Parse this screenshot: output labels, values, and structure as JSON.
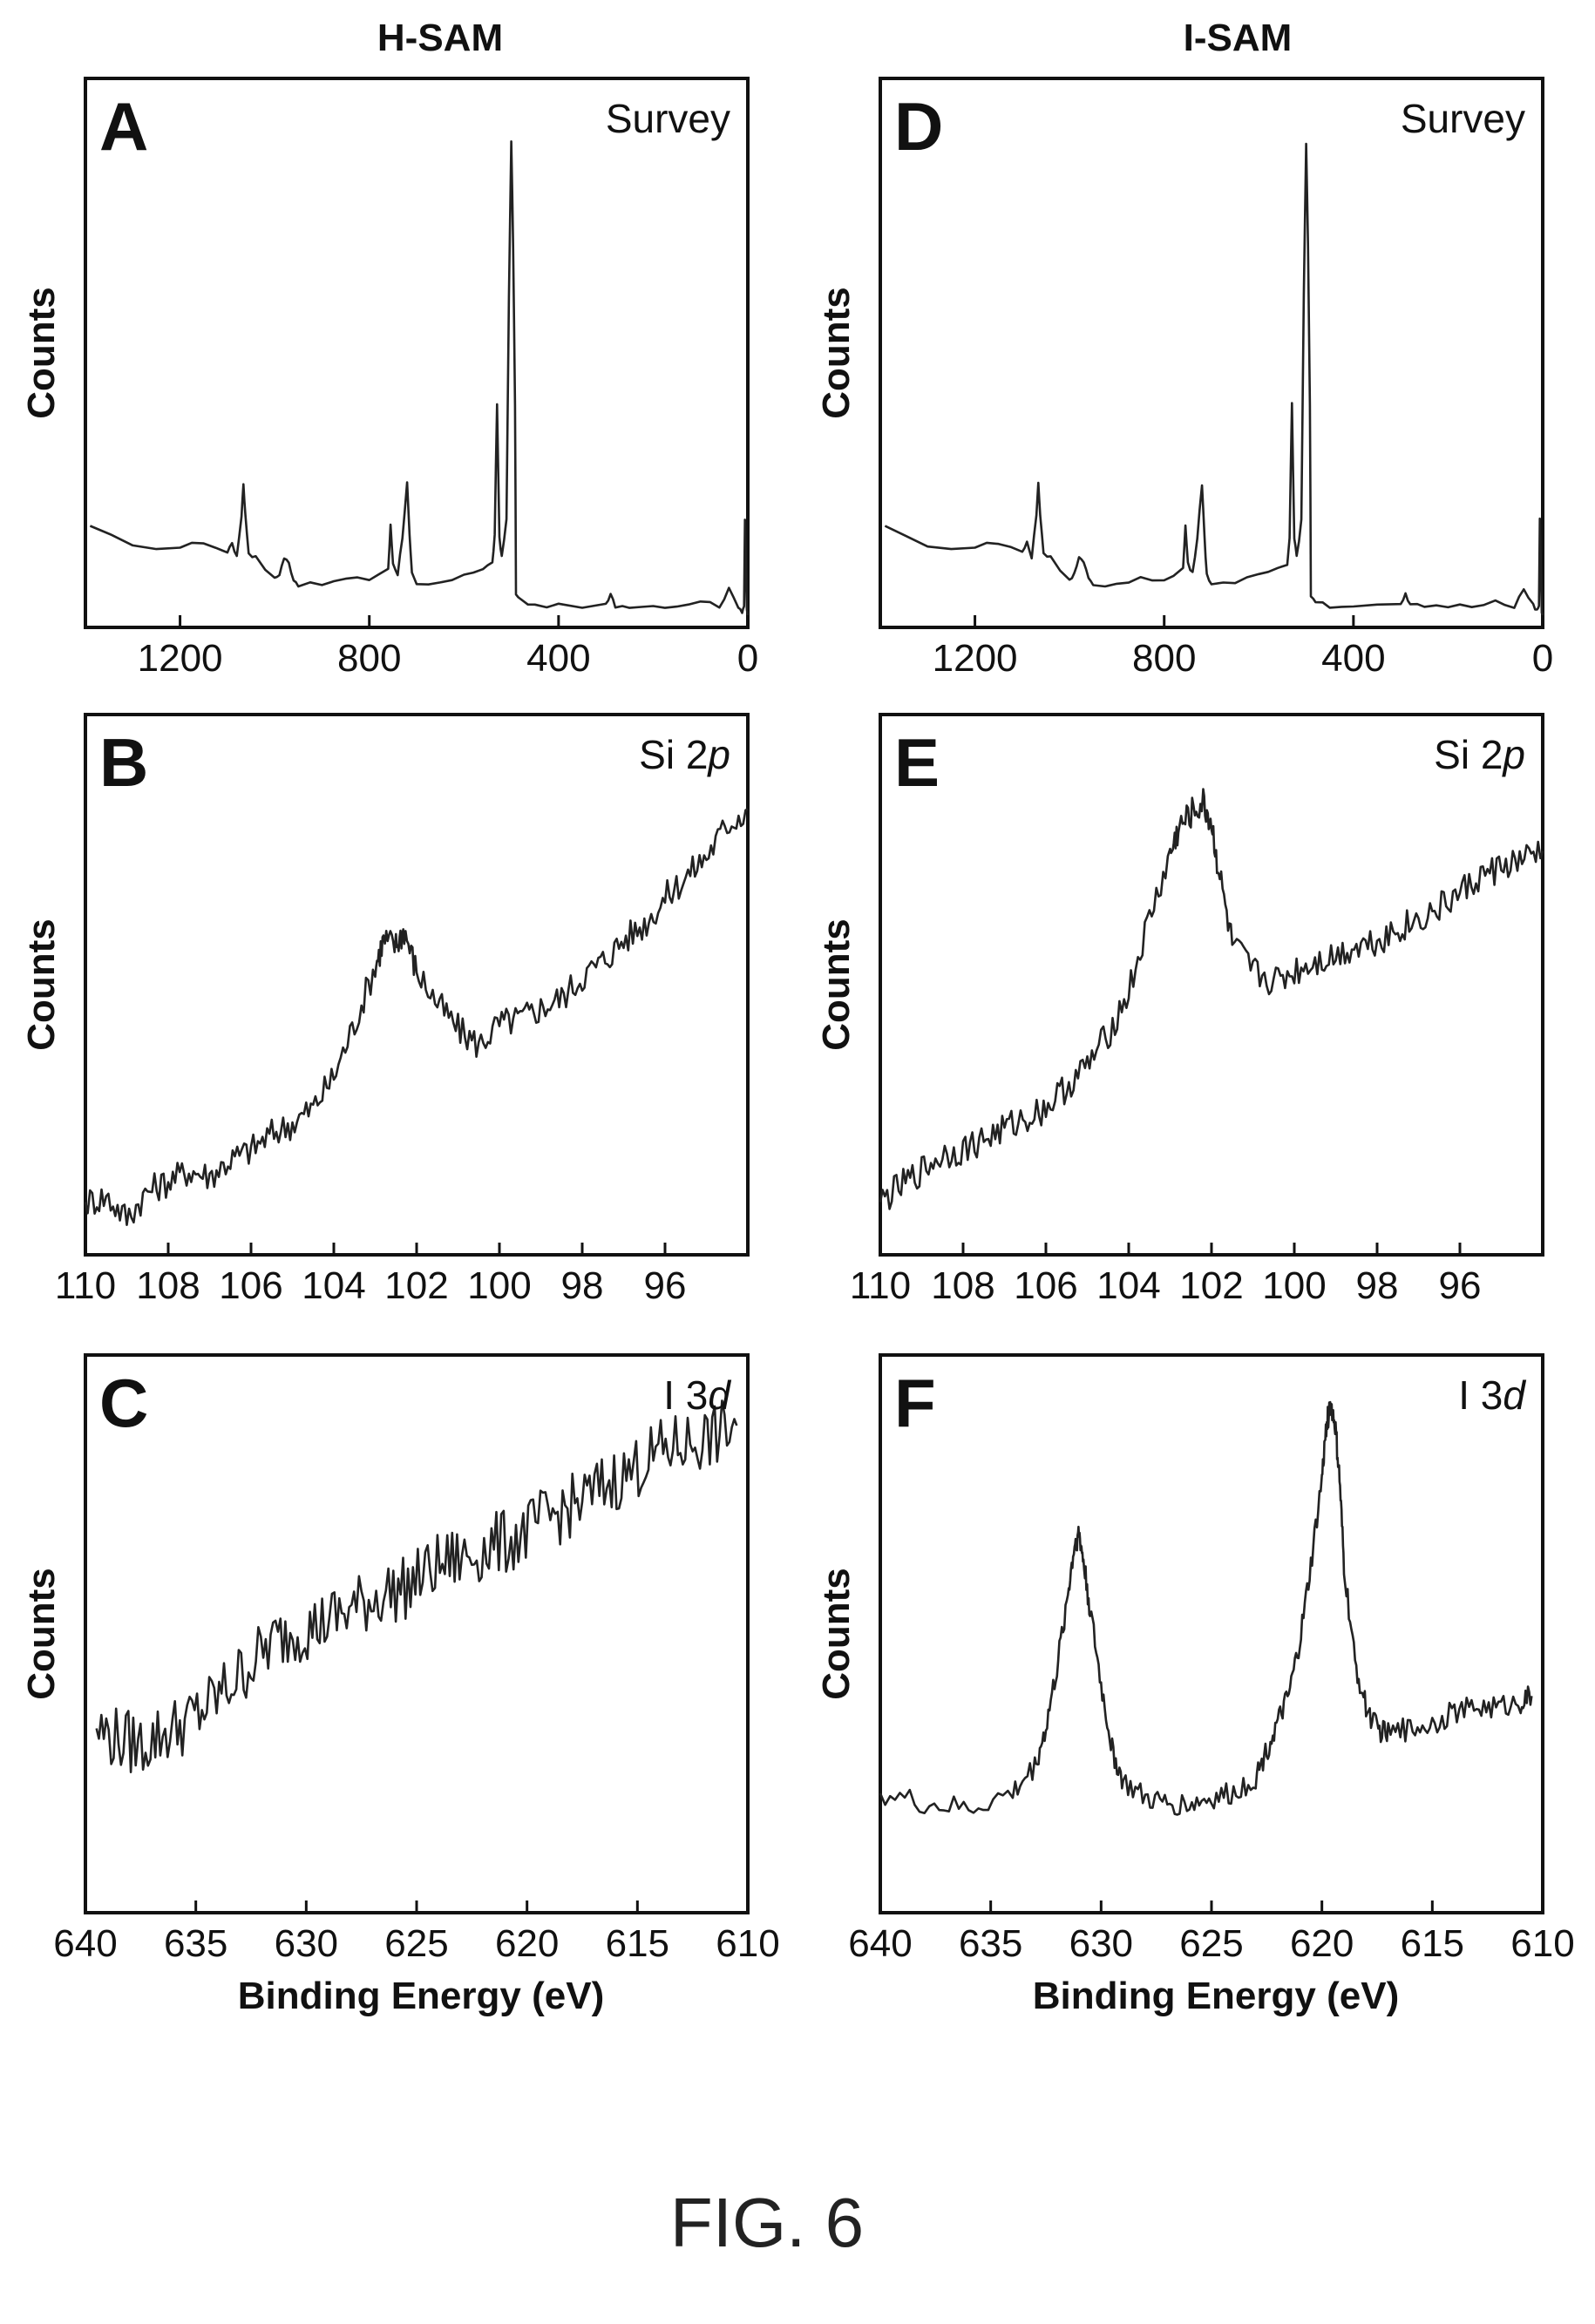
{
  "figure_caption": "FIG. 6",
  "column_titles": [
    "H-SAM",
    "I-SAM"
  ],
  "colors": {
    "trace": "#222222",
    "frame": "#111111"
  },
  "chart_data": [
    {
      "id": "A",
      "type": "line",
      "letter": "A",
      "label": "Survey",
      "label_italic": "",
      "ylabel": "Counts",
      "xlabel": "",
      "xlim": [
        1400,
        0
      ],
      "ylim": [
        0,
        100
      ],
      "xticks": [
        1200,
        800,
        400,
        0
      ],
      "tick_labels": [
        "1200",
        "800",
        "400",
        "0"
      ],
      "series": [
        {
          "x": [
            1390,
            1300,
            1200,
            1150,
            1100,
            1090,
            1080,
            1070,
            1066,
            1062,
            1055,
            1040,
            1000,
            990,
            980,
            970,
            960,
            950,
            900,
            850,
            800,
            760,
            755,
            750,
            740,
            730,
            720,
            715,
            710,
            700,
            650,
            600,
            560,
            540,
            535,
            530,
            525,
            520,
            510,
            505,
            500,
            496,
            492,
            490,
            480,
            450,
            400,
            300,
            290,
            280,
            250,
            200,
            150,
            100,
            60,
            40,
            20,
            12,
            8,
            6,
            4,
            2,
            0
          ],
          "y": [
            17,
            13,
            13,
            14,
            12,
            14,
            11,
            19,
            25,
            19,
            12,
            11,
            7,
            8,
            11,
            10,
            7,
            6,
            6,
            7,
            7,
            9,
            17,
            10,
            8,
            15,
            25,
            15,
            8,
            6,
            6,
            8,
            9,
            10,
            15,
            40,
            15,
            11,
            18,
            60,
            89,
            70,
            40,
            4,
            3,
            2,
            2,
            2,
            4,
            2,
            2,
            2,
            2,
            3,
            2,
            5,
            2,
            1,
            2,
            18,
            10,
            1,
            0
          ]
        }
      ]
    },
    {
      "id": "B",
      "type": "line",
      "letter": "B",
      "label": "Si 2",
      "label_italic": "p",
      "ylabel": "Counts",
      "xlabel": "",
      "xlim": [
        110,
        94
      ],
      "ylim": [
        0,
        100
      ],
      "xticks": [
        110,
        108,
        106,
        104,
        102,
        100,
        98,
        96
      ],
      "tick_labels": [
        "110",
        "108",
        "106",
        "104",
        "102",
        "100",
        "98",
        "96"
      ],
      "series": [
        {
          "x": [
            110,
            109.5,
            109,
            108.5,
            108,
            107.5,
            107,
            106.5,
            106,
            105.5,
            105,
            104.5,
            104,
            103.5,
            103,
            102.8,
            102.5,
            102.3,
            102,
            101.5,
            101,
            100.5,
            100,
            99.5,
            99,
            98.5,
            98,
            97.5,
            97,
            96.5,
            96,
            95.5,
            95,
            94.5,
            94
          ],
          "y": [
            8,
            9,
            5,
            10,
            12,
            14,
            13,
            16,
            18,
            21,
            23,
            26,
            32,
            42,
            53,
            58,
            57,
            60,
            52,
            46,
            41,
            38,
            42,
            43,
            45,
            47,
            51,
            54,
            58,
            61,
            66,
            70,
            74,
            80,
            83
          ]
        }
      ]
    },
    {
      "id": "C",
      "type": "line",
      "letter": "C",
      "label": "I 3",
      "label_italic": "d",
      "ylabel": "Counts",
      "xlabel": "Binding Energy (eV)",
      "xlim": [
        640,
        610
      ],
      "ylim": [
        0,
        100
      ],
      "xticks": [
        640,
        635,
        630,
        625,
        620,
        615,
        610
      ],
      "tick_labels": [
        "640",
        "635",
        "630",
        "625",
        "620",
        "615",
        "610"
      ],
      "series": [
        {
          "x": [
            639.5,
            638.5,
            637.5,
            636.5,
            635.5,
            634.5,
            633.5,
            632.5,
            631.5,
            630.5,
            629.5,
            628.5,
            627.5,
            626.5,
            625.5,
            624.5,
            623.5,
            622.5,
            621.5,
            620.5,
            619.5,
            618.5,
            617.5,
            616.5,
            615.5,
            614.5,
            613.5,
            612.5,
            611.5,
            610.5
          ],
          "y": [
            32,
            30,
            29,
            31,
            33,
            36,
            40,
            44,
            48,
            50,
            51,
            53,
            55,
            57,
            58,
            61,
            63,
            64,
            66,
            67,
            70,
            72,
            74,
            77,
            79,
            82,
            84,
            85,
            86,
            88
          ]
        }
      ]
    },
    {
      "id": "D",
      "type": "line",
      "letter": "D",
      "label": "Survey",
      "label_italic": "",
      "ylabel": "Counts",
      "xlabel": "",
      "xlim": [
        1400,
        0
      ],
      "ylim": [
        0,
        100
      ],
      "xticks": [
        1200,
        800,
        400,
        0
      ],
      "tick_labels": [
        "1200",
        "800",
        "400",
        "0"
      ],
      "series": [
        {
          "x": [
            1390,
            1300,
            1200,
            1150,
            1100,
            1090,
            1080,
            1070,
            1066,
            1062,
            1055,
            1040,
            1000,
            990,
            980,
            970,
            960,
            950,
            900,
            850,
            800,
            760,
            755,
            750,
            740,
            730,
            720,
            715,
            710,
            700,
            650,
            600,
            560,
            540,
            535,
            530,
            525,
            520,
            510,
            505,
            500,
            496,
            492,
            490,
            480,
            450,
            400,
            300,
            290,
            280,
            250,
            200,
            150,
            100,
            60,
            40,
            20,
            12,
            8,
            6,
            4,
            2,
            0
          ],
          "y": [
            17,
            13,
            13,
            14,
            12,
            14,
            11,
            19,
            25,
            19,
            12,
            11,
            7,
            8,
            11,
            10,
            7,
            6,
            6,
            7,
            7,
            9,
            17,
            10,
            8,
            15,
            25,
            15,
            8,
            6,
            6,
            8,
            9,
            10,
            15,
            40,
            15,
            11,
            18,
            60,
            89,
            70,
            40,
            4,
            3,
            2,
            2,
            2,
            4,
            2,
            2,
            2,
            2,
            3,
            2,
            5,
            2,
            1,
            2,
            18,
            10,
            1,
            0
          ]
        }
      ]
    },
    {
      "id": "E",
      "type": "line",
      "letter": "E",
      "label": "Si 2",
      "label_italic": "p",
      "ylabel": "Counts",
      "xlabel": "",
      "xlim": [
        110,
        94
      ],
      "ylim": [
        0,
        100
      ],
      "xticks": [
        110,
        108,
        106,
        104,
        102,
        100,
        98,
        96
      ],
      "tick_labels": [
        "110",
        "108",
        "106",
        "104",
        "102",
        "100",
        "98",
        "96"
      ],
      "series": [
        {
          "x": [
            110,
            109.5,
            109,
            108.5,
            108,
            107.5,
            107,
            106.5,
            106,
            105.5,
            105,
            104.5,
            104,
            103.5,
            103,
            102.8,
            102.5,
            102.2,
            102,
            101.8,
            101.5,
            101,
            100.5,
            100,
            99.5,
            99,
            98.5,
            98,
            97.5,
            97,
            96.5,
            96,
            95.5,
            95,
            94.5,
            94
          ],
          "y": [
            8,
            11,
            14,
            17,
            18,
            20,
            22,
            24,
            26,
            30,
            34,
            40,
            48,
            62,
            74,
            79,
            82,
            84,
            80,
            70,
            57,
            52,
            50,
            52,
            54,
            55,
            57,
            58,
            60,
            62,
            64,
            67,
            70,
            72,
            73,
            75
          ]
        }
      ]
    },
    {
      "id": "F",
      "type": "line",
      "letter": "F",
      "label": "I 3",
      "label_italic": "d",
      "ylabel": "Counts",
      "xlabel": "Binding Energy (eV)",
      "xlim": [
        640,
        610
      ],
      "ylim": [
        0,
        100
      ],
      "xticks": [
        640,
        635,
        630,
        625,
        620,
        615,
        610
      ],
      "tick_labels": [
        "640",
        "635",
        "630",
        "625",
        "620",
        "615",
        "610"
      ],
      "series": [
        {
          "x": [
            640,
            638,
            636,
            634,
            633,
            632.5,
            632,
            631.5,
            631.2,
            631,
            630.8,
            630.5,
            630,
            629.5,
            629,
            628,
            627,
            626,
            625,
            624,
            623,
            622.5,
            622,
            621.5,
            621,
            620.5,
            620,
            619.8,
            619.6,
            619.4,
            619.2,
            619,
            618.5,
            618,
            617.5,
            617,
            616,
            615,
            614,
            613,
            612,
            611,
            610.5
          ],
          "y": [
            20,
            18,
            17,
            20,
            25,
            32,
            43,
            57,
            66,
            68,
            63,
            54,
            40,
            28,
            22,
            19,
            18,
            18,
            19,
            20,
            23,
            28,
            33,
            38,
            48,
            62,
            78,
            88,
            92,
            88,
            78,
            62,
            44,
            36,
            32,
            31,
            32,
            33,
            35,
            36,
            36,
            37,
            38
          ]
        }
      ]
    }
  ]
}
